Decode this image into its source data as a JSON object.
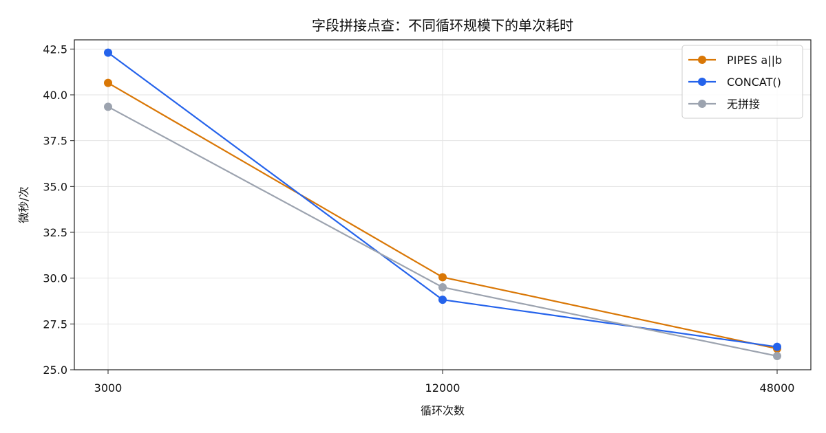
{
  "chart_data": {
    "type": "line",
    "title": "字段拼接点查：不同循环规模下的单次耗时",
    "xlabel": "循环次数",
    "ylabel": "微秒/次",
    "categories": [
      "3000",
      "12000",
      "48000"
    ],
    "ylim": [
      25.0,
      43.0
    ],
    "yticks": [
      "25.0",
      "27.5",
      "30.0",
      "32.5",
      "35.0",
      "37.5",
      "40.0",
      "42.5"
    ],
    "grid": true,
    "legend_position": "top-right",
    "series": [
      {
        "name": "PIPES a||b",
        "color": "#d97706",
        "values": [
          40.65,
          30.05,
          26.15
        ]
      },
      {
        "name": "CONCAT()",
        "color": "#2563eb",
        "values": [
          42.3,
          28.82,
          26.25
        ]
      },
      {
        "name": "无拼接",
        "color": "#9ca3af",
        "values": [
          39.35,
          29.5,
          25.75
        ]
      }
    ]
  }
}
